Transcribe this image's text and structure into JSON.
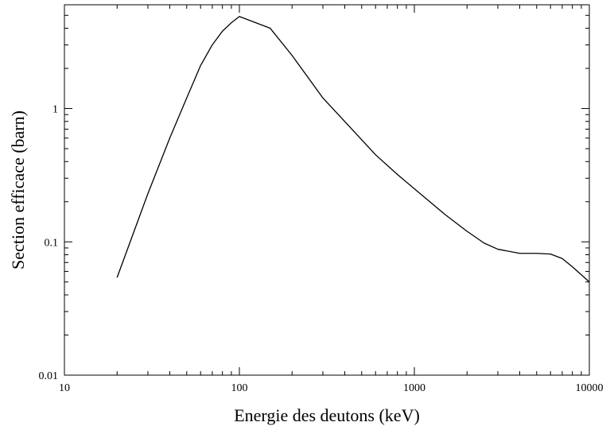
{
  "chart_data": {
    "type": "line",
    "title": "",
    "xlabel": "Energie des deutons (keV)",
    "ylabel": "Section efficace (barn)",
    "xscale": "log",
    "yscale": "log",
    "xlim": [
      10,
      10000
    ],
    "ylim": [
      0.01,
      6
    ],
    "xticks": [
      10,
      100,
      1000,
      10000
    ],
    "xtick_labels": [
      "10",
      "100",
      "1000",
      "10000"
    ],
    "yticks": [
      0.01,
      0.1,
      1
    ],
    "ytick_labels": [
      "0.01",
      "0.1",
      "1"
    ],
    "grid": false,
    "legend": "none",
    "line_color": "#000000",
    "series": [
      {
        "x": [
          20,
          25,
          30,
          40,
          50,
          60,
          70,
          80,
          90,
          100,
          150,
          200,
          300,
          400,
          600,
          800,
          1000,
          1500,
          2000,
          2500,
          3000,
          4000,
          5000,
          6000,
          7000,
          8000,
          10000
        ],
        "y": [
          0.054,
          0.12,
          0.23,
          0.6,
          1.2,
          2.1,
          3.0,
          3.8,
          4.4,
          4.9,
          4.0,
          2.5,
          1.2,
          0.8,
          0.45,
          0.32,
          0.25,
          0.16,
          0.12,
          0.098,
          0.088,
          0.082,
          0.082,
          0.081,
          0.075,
          0.065,
          0.05
        ]
      }
    ]
  }
}
